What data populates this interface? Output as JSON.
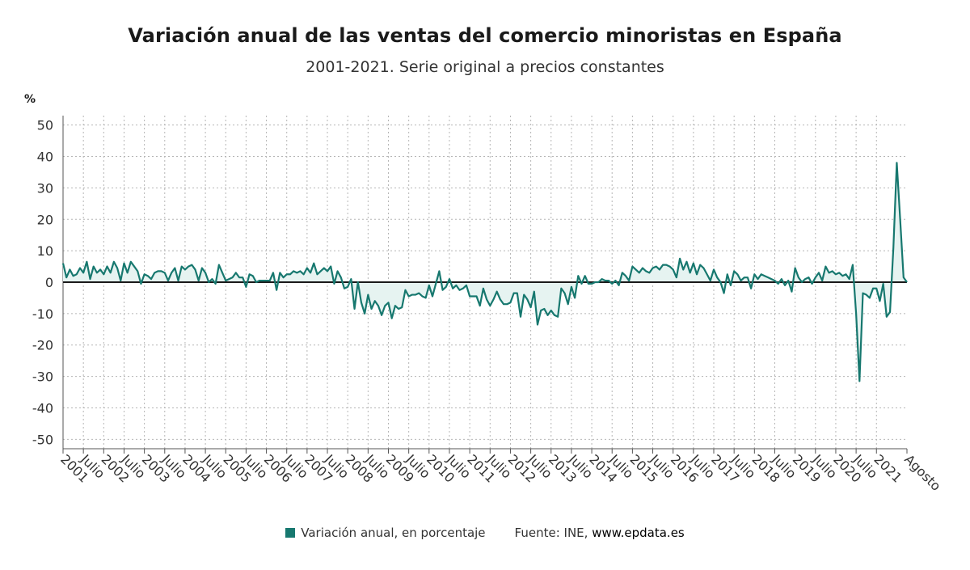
{
  "title": "Variación anual de las ventas del comercio minoristas en España",
  "subtitle": "2001-2021. Serie original a precios constantes",
  "footer": {
    "legend_label": "Variación anual, en porcentaje",
    "source_prefix": "Fuente: INE, ",
    "source_site": "www.epdata.es"
  },
  "colors": {
    "line": "#17786f",
    "fill": "#e6f3f1",
    "grid": "#b5b5b5",
    "zero_line": "#1a1a1a"
  },
  "chart_data": {
    "type": "line",
    "title": "Variación anual de las ventas del comercio minoristas en España",
    "subtitle": "2001-2021. Serie original a precios constantes",
    "ylabel": "%",
    "ylim": [
      -53,
      53
    ],
    "yticks": [
      50,
      40,
      30,
      20,
      10,
      0,
      -10,
      -20,
      -30,
      -40,
      -50
    ],
    "grid": true,
    "legend_position": "bottom",
    "x_tick_labels": [
      "2001",
      "Julio",
      "2002",
      "Julio",
      "2003",
      "Julio",
      "2004",
      "Julio",
      "2005",
      "Julio",
      "2006",
      "Julio",
      "2007",
      "Julio",
      "2008",
      "Julio",
      "2009",
      "Julio",
      "2010",
      "Julio",
      "2011",
      "Julio",
      "2012",
      "Julio",
      "2013",
      "Julio",
      "2014",
      "Julio",
      "2015",
      "Julio",
      "2016",
      "Julio",
      "2017",
      "Julio",
      "2018",
      "Julio",
      "2019",
      "Julio",
      "2020",
      "Julio",
      "2021",
      "Agosto"
    ],
    "series": [
      {
        "name": "Variación anual, en porcentaje",
        "color": "#17786f",
        "start": "2001-01",
        "end": "2021-08",
        "values": [
          6,
          1.5,
          4,
          2,
          2.5,
          4.5,
          3,
          6.5,
          1,
          5,
          3,
          4,
          2.5,
          5,
          3,
          6.5,
          4.5,
          0.5,
          6,
          3,
          6.5,
          5,
          3.5,
          -0.5,
          2.5,
          2,
          1,
          3,
          3.5,
          3.5,
          3,
          0.5,
          3,
          4.5,
          0.5,
          5,
          4,
          5,
          5.5,
          4,
          0.5,
          4.5,
          3,
          0,
          1,
          -0.5,
          5.5,
          3,
          0.5,
          1,
          1.5,
          3,
          1.5,
          1.5,
          -1.5,
          2.5,
          2,
          0,
          0.5,
          0.5,
          0.5,
          0.5,
          3,
          -2.5,
          3,
          1.5,
          2.5,
          2.5,
          3.5,
          3,
          3.5,
          2.5,
          4.5,
          3,
          6,
          2.5,
          3.5,
          4.5,
          3.5,
          5,
          -0.5,
          3.5,
          1.5,
          -2,
          -1.5,
          1,
          -8.5,
          0,
          -6.5,
          -10,
          -4,
          -8.5,
          -6,
          -7.5,
          -10.5,
          -7.5,
          -6.5,
          -11.5,
          -7.5,
          -8.5,
          -8,
          -2.5,
          -4.5,
          -4,
          -4,
          -3.5,
          -4.5,
          -5,
          -1,
          -4.5,
          -0.5,
          3.5,
          -2.5,
          -1.5,
          1,
          -2,
          -1,
          -2.5,
          -2,
          -1,
          -4.5,
          -4.5,
          -4.5,
          -7.5,
          -2,
          -5.5,
          -7.5,
          -5.5,
          -3,
          -5.5,
          -7,
          -7,
          -6.5,
          -3.5,
          -3.5,
          -11,
          -4,
          -5.5,
          -8,
          -3,
          -13.5,
          -9,
          -8.5,
          -10.5,
          -9,
          -10.5,
          -11,
          -2,
          -3.5,
          -7,
          -1.5,
          -5,
          2,
          -0.5,
          2,
          -0.5,
          -0.5,
          0,
          0,
          1,
          0.5,
          0.5,
          -0.5,
          0.5,
          -1,
          3,
          2,
          0.5,
          5,
          4,
          3,
          4.5,
          3.5,
          3,
          4.5,
          5,
          4,
          5.5,
          5.5,
          5,
          4,
          1.5,
          7.5,
          4,
          6.5,
          3,
          6,
          2.5,
          5.5,
          4.5,
          2.5,
          0.5,
          4,
          1.5,
          0,
          -3.5,
          2.5,
          -1,
          3.5,
          2.5,
          0.5,
          1.5,
          1.5,
          -2,
          2.5,
          1,
          2.5,
          2,
          1.5,
          1,
          0.5,
          -0.5,
          1,
          -1,
          0.5,
          -3,
          4.5,
          1.5,
          0,
          1,
          1.5,
          -0.5,
          1.5,
          3,
          0.5,
          5,
          3,
          3.5,
          2.5,
          3,
          2,
          2.5,
          1,
          5.5,
          -10,
          -31.5,
          -3.5,
          -4,
          -5,
          -2,
          -2,
          -6,
          -0.5,
          -11,
          -9.5,
          11,
          38,
          20,
          1.5,
          0
        ]
      }
    ]
  }
}
